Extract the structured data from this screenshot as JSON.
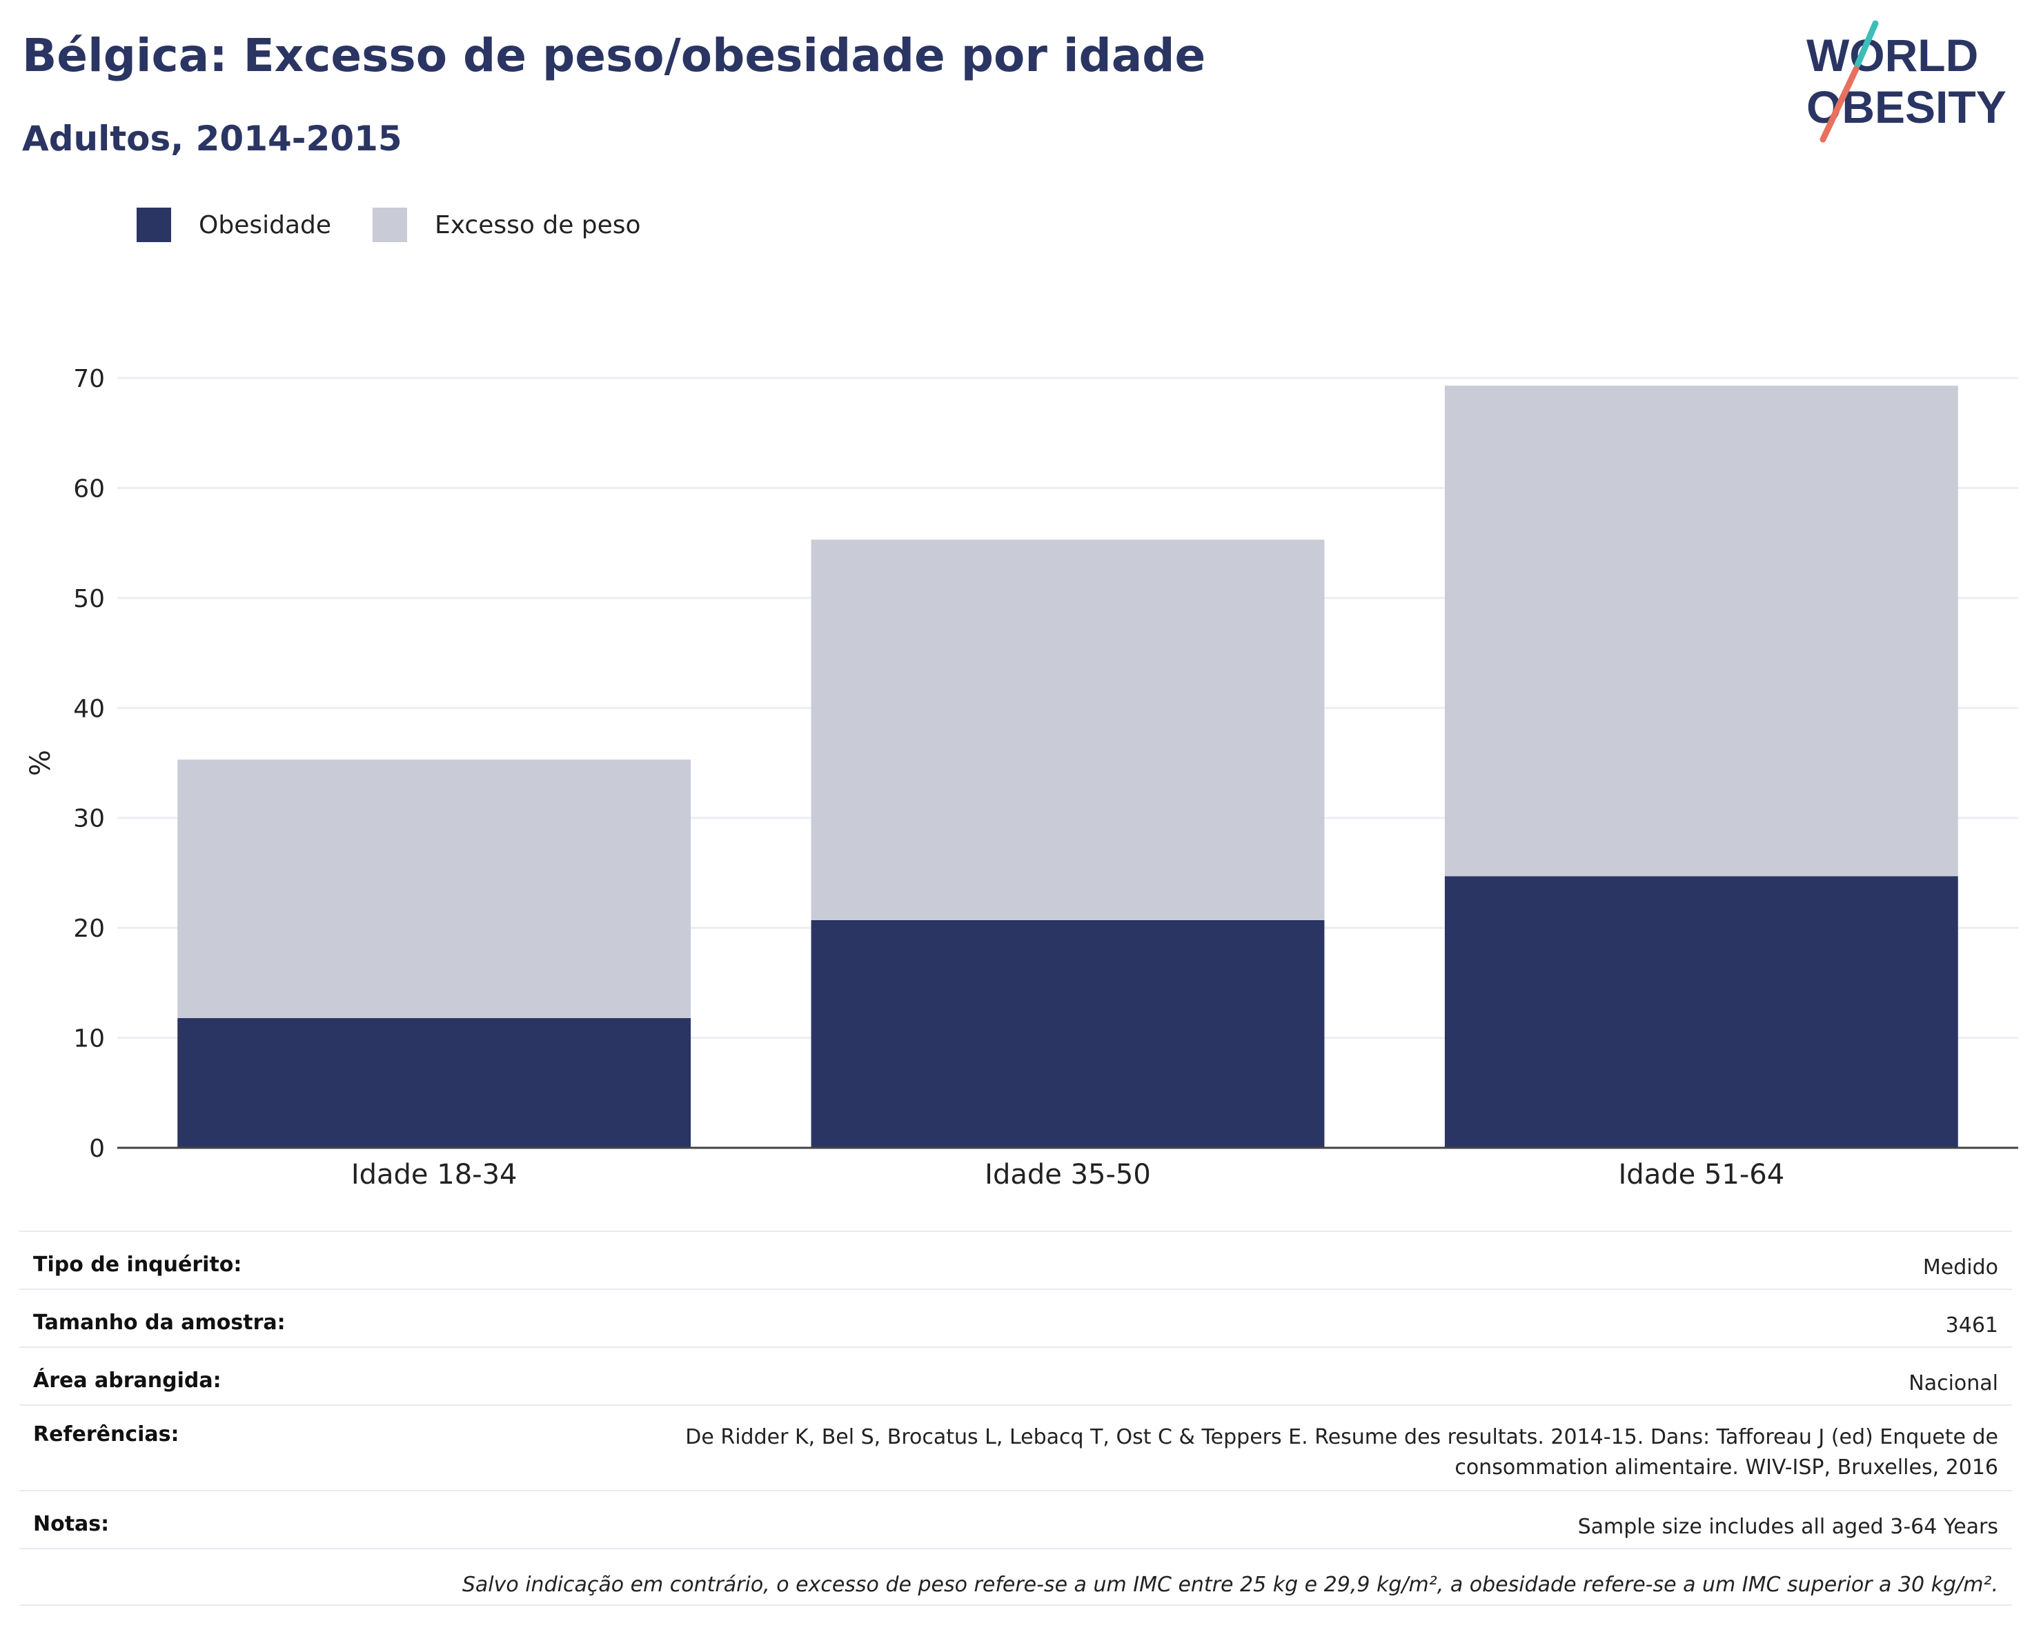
{
  "header": {
    "title": "Bélgica: Excesso de peso/obesidade por idade",
    "subtitle": "Adultos, 2014-2015"
  },
  "logo": {
    "line1": "WORLD",
    "line2": "OBESITY",
    "colors": {
      "text": "#2a3563",
      "slash_top": "#3dbdb8",
      "slash_bottom": "#e8705e"
    }
  },
  "colors": {
    "obesity": "#2a3563",
    "overweight": "#c9cbd7",
    "grid": "#eceef4",
    "axis": "#444444"
  },
  "chart_data": {
    "type": "bar",
    "stacked": true,
    "categories": [
      "Idade 18-34",
      "Idade 35-50",
      "Idade 51-64"
    ],
    "series": [
      {
        "name": "Obesidade",
        "values": [
          11.8,
          20.7,
          24.7
        ]
      },
      {
        "name": "Excesso de peso",
        "values": [
          23.5,
          34.6,
          44.6
        ]
      }
    ],
    "ylabel": "%",
    "ylim": [
      0,
      70
    ],
    "yticks": [
      0,
      10,
      20,
      30,
      40,
      50,
      60,
      70
    ],
    "grid": true,
    "legend": "top-left"
  },
  "info": {
    "survey_type": {
      "label": "Tipo de inquérito:",
      "value": "Medido"
    },
    "sample_size": {
      "label": "Tamanho da amostra:",
      "value": "3461"
    },
    "area": {
      "label": "Área abrangida:",
      "value": "Nacional"
    },
    "references": {
      "label": "Referências:",
      "line1": "De Ridder K, Bel S, Brocatus L, Lebacq T, Ost C & Teppers E. Resume des resultats. 2014-15. Dans: Tafforeau J (ed) Enquete de",
      "line2": "consommation alimentaire. WIV-ISP, Bruxelles, 2016"
    },
    "notes": {
      "label": "Notas:",
      "value": "Sample size includes all aged 3-64 Years"
    },
    "footnote": "Salvo indicação em contrário, o excesso de peso refere-se a um IMC entre 25 kg e 29,9 kg/m², a obesidade refere-se a um IMC superior a 30 kg/m²."
  }
}
